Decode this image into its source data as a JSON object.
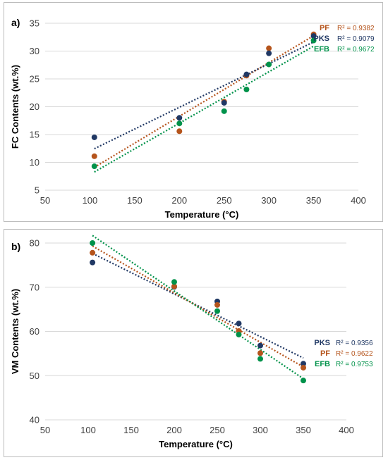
{
  "chart_data": [
    {
      "panel": "a)",
      "type": "scatter",
      "xlabel": "Temperature (°C)",
      "ylabel": "FC Contents (wt.%)",
      "xlim": [
        50,
        400
      ],
      "ylim": [
        5,
        35
      ],
      "xticks": [
        "50",
        "100",
        "150",
        "200",
        "250",
        "300",
        "350",
        "400"
      ],
      "yticks": [
        "5",
        "10",
        "15",
        "20",
        "25",
        "30",
        "35"
      ],
      "grid": "horizontal",
      "legend_position": "top-right",
      "series": [
        {
          "name": "PF",
          "color": "#b5541c",
          "r2": "R² = 0.9382",
          "x": [
            105,
            200,
            250,
            275,
            300,
            350
          ],
          "y": [
            11.1,
            15.6,
            20.9,
            25.6,
            30.5,
            33.0
          ]
        },
        {
          "name": "PKS",
          "color": "#203864",
          "r2": "R² = 0.9079",
          "x": [
            105,
            200,
            250,
            275,
            300,
            350
          ],
          "y": [
            14.5,
            18.0,
            20.7,
            25.8,
            29.6,
            32.7
          ]
        },
        {
          "name": "EFB",
          "color": "#00924a",
          "r2": "R² = 0.9672",
          "x": [
            105,
            200,
            250,
            275,
            300,
            350
          ],
          "y": [
            9.3,
            17.0,
            19.2,
            23.1,
            27.6,
            31.9
          ]
        }
      ]
    },
    {
      "panel": "b)",
      "type": "scatter",
      "xlabel": "Temperature (°C)",
      "ylabel": "VM Contents (wt.%)",
      "xlim": [
        50,
        400
      ],
      "ylim": [
        40,
        80
      ],
      "xticks": [
        "50",
        "100",
        "150",
        "200",
        "250",
        "300",
        "350",
        "400"
      ],
      "yticks": [
        "40",
        "50",
        "60",
        "70",
        "80"
      ],
      "grid": "horizontal",
      "legend_position": "right",
      "series": [
        {
          "name": "PKS",
          "color": "#203864",
          "r2": "R² = 0.9356",
          "x": [
            105,
            200,
            250,
            275,
            300,
            350
          ],
          "y": [
            75.6,
            70.1,
            66.8,
            61.8,
            56.8,
            52.7
          ]
        },
        {
          "name": "PF",
          "color": "#b5541c",
          "r2": "R² = 0.9622",
          "x": [
            105,
            200,
            250,
            275,
            300,
            350
          ],
          "y": [
            77.8,
            70.2,
            66.0,
            60.1,
            55.1,
            51.8
          ]
        },
        {
          "name": "EFB",
          "color": "#00924a",
          "r2": "R² = 0.9753",
          "x": [
            105,
            200,
            250,
            275,
            300,
            350
          ],
          "y": [
            80.0,
            71.2,
            64.6,
            59.3,
            53.8,
            48.9
          ]
        }
      ]
    }
  ]
}
